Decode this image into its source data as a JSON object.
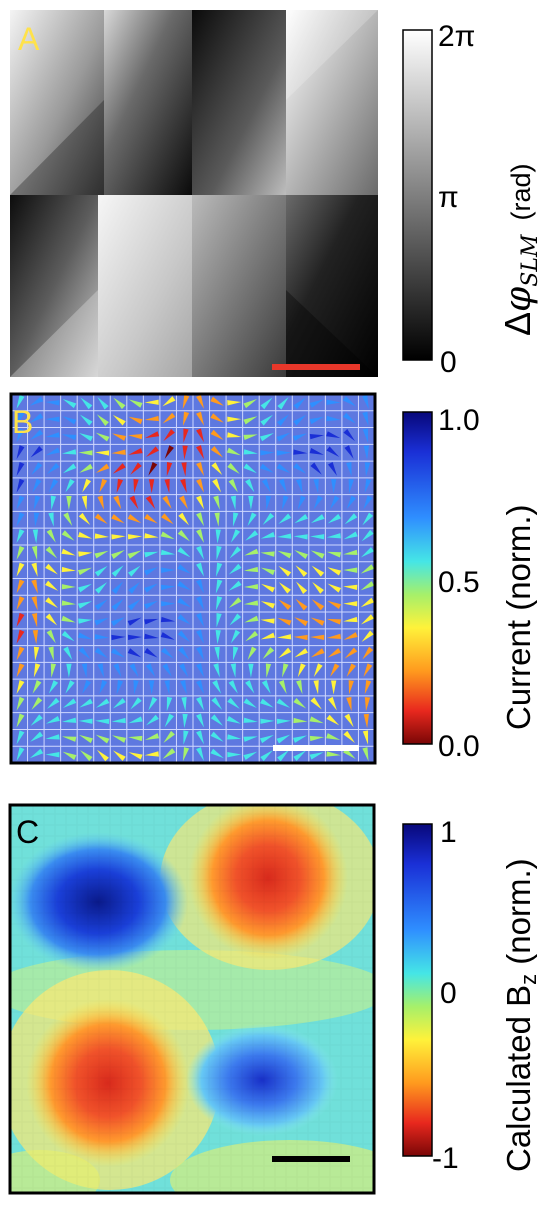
{
  "panels": {
    "a": {
      "letter": "A"
    },
    "b": {
      "letter": "B"
    },
    "c": {
      "letter": "C"
    }
  },
  "colorbars": {
    "a": {
      "ticks": [
        "2π",
        "π",
        "0"
      ],
      "label_delta": "Δ",
      "label_phi": "φ",
      "label_sub": "SLM",
      "label_unit": "(rad)"
    },
    "b": {
      "ticks": [
        "1.0",
        "0.5",
        "0.0"
      ],
      "label": "Current (norm.)"
    },
    "c": {
      "ticks": [
        "1",
        "0",
        "-1"
      ],
      "label_pre": "Calculated B",
      "label_sub": "z",
      "label_post": " (norm.)"
    }
  },
  "colors": {
    "scalebar_a": "#e8372a",
    "scalebar_b": "#ffffff",
    "scalebar_c": "#000000",
    "label_yellow": "#ffe24a",
    "field_b_bg": "#5e78e0"
  }
}
